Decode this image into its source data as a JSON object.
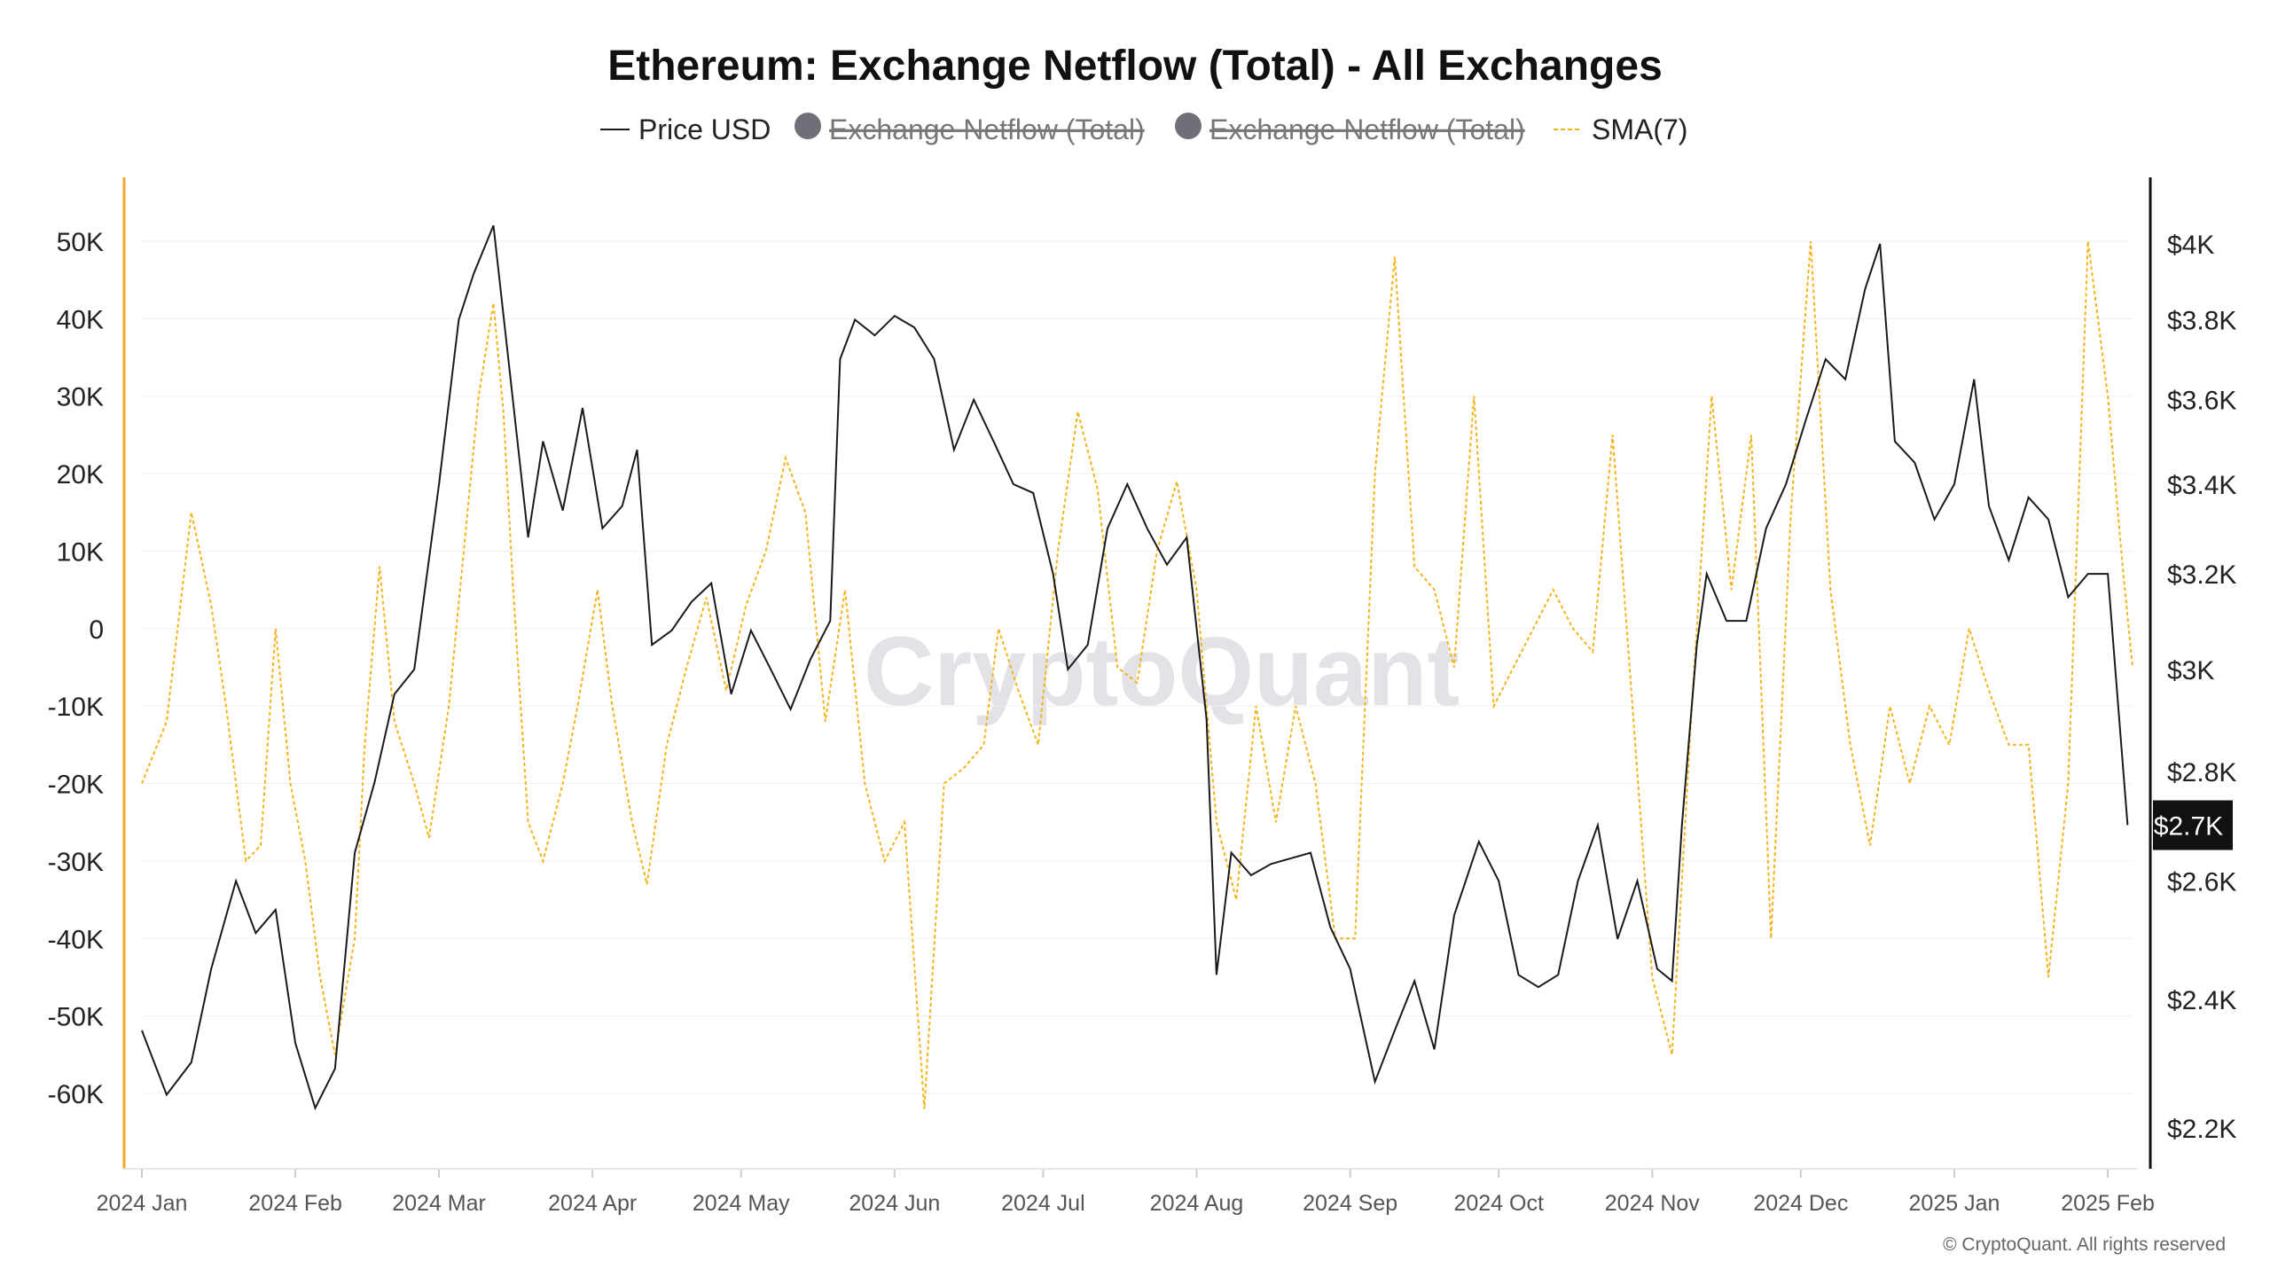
{
  "chart_data": {
    "type": "line",
    "title": "Ethereum: Exchange Netflow (Total) - All Exchanges",
    "legend": {
      "placement": "top-center",
      "items": [
        {
          "label": "Price USD",
          "marker": "line",
          "active": true
        },
        {
          "label": "Exchange Netflow (Total)",
          "marker": "dot",
          "active": false
        },
        {
          "label": "Exchange Netflow (Total)",
          "marker": "dot",
          "active": false
        },
        {
          "label": "SMA(7)",
          "marker": "dashed-line",
          "active": true
        }
      ]
    },
    "x_axis": {
      "ticks": [
        "2024 Jan",
        "2024 Feb",
        "2024 Mar",
        "2024 Apr",
        "2024 May",
        "2024 Jun",
        "2024 Jul",
        "2024 Aug",
        "2024 Sep",
        "2024 Oct",
        "2024 Nov",
        "2024 Dec",
        "2025 Jan",
        "2025 Feb"
      ],
      "range": [
        "2024-01-01",
        "2025-02-06"
      ]
    },
    "y_left": {
      "ticks": [
        50000,
        40000,
        30000,
        20000,
        10000,
        0,
        -10000,
        -20000,
        -30000,
        -40000,
        -50000,
        -60000
      ],
      "tick_labels": [
        "50K",
        "40K",
        "30K",
        "20K",
        "10K",
        "0",
        "-10K",
        "-20K",
        "-30K",
        "-40K",
        "-50K",
        "-60K"
      ],
      "range": [
        -69000,
        59000
      ]
    },
    "y_right": {
      "ticks": [
        4000,
        3800,
        3600,
        3400,
        3200,
        3000,
        2800,
        2600,
        2400,
        2200
      ],
      "tick_labels": [
        "$4K",
        "$3.8K",
        "$3.6K",
        "$3.4K",
        "$3.2K",
        "$3K",
        "$2.8K",
        "$2.6K",
        "$2.4K",
        "$2.2K"
      ],
      "scale": "log",
      "range": [
        2150,
        4200
      ]
    },
    "grid": {
      "horizontal": true,
      "vertical": false
    },
    "current_price_label": "$2.7K",
    "series": [
      {
        "name": "Price USD",
        "axis": "right",
        "color": "#1a1a1a",
        "x": [
          "2024-01-01",
          "2024-01-06",
          "2024-01-11",
          "2024-01-15",
          "2024-01-20",
          "2024-01-24",
          "2024-01-28",
          "2024-02-01",
          "2024-02-05",
          "2024-02-09",
          "2024-02-13",
          "2024-02-17",
          "2024-02-21",
          "2024-02-25",
          "2024-03-01",
          "2024-03-05",
          "2024-03-08",
          "2024-03-12",
          "2024-03-15",
          "2024-03-19",
          "2024-03-22",
          "2024-03-26",
          "2024-03-30",
          "2024-04-03",
          "2024-04-07",
          "2024-04-10",
          "2024-04-13",
          "2024-04-17",
          "2024-04-21",
          "2024-04-25",
          "2024-04-29",
          "2024-05-03",
          "2024-05-07",
          "2024-05-11",
          "2024-05-15",
          "2024-05-19",
          "2024-05-21",
          "2024-05-24",
          "2024-05-28",
          "2024-06-01",
          "2024-06-05",
          "2024-06-09",
          "2024-06-13",
          "2024-06-17",
          "2024-06-21",
          "2024-06-25",
          "2024-06-29",
          "2024-07-03",
          "2024-07-06",
          "2024-07-10",
          "2024-07-14",
          "2024-07-18",
          "2024-07-22",
          "2024-07-26",
          "2024-07-30",
          "2024-08-03",
          "2024-08-05",
          "2024-08-08",
          "2024-08-12",
          "2024-08-16",
          "2024-08-20",
          "2024-08-24",
          "2024-08-28",
          "2024-09-01",
          "2024-09-06",
          "2024-09-10",
          "2024-09-14",
          "2024-09-18",
          "2024-09-22",
          "2024-09-27",
          "2024-10-01",
          "2024-10-05",
          "2024-10-09",
          "2024-10-13",
          "2024-10-17",
          "2024-10-21",
          "2024-10-25",
          "2024-10-29",
          "2024-11-02",
          "2024-11-05",
          "2024-11-07",
          "2024-11-10",
          "2024-11-12",
          "2024-11-16",
          "2024-11-20",
          "2024-11-24",
          "2024-11-28",
          "2024-12-02",
          "2024-12-06",
          "2024-12-10",
          "2024-12-14",
          "2024-12-17",
          "2024-12-20",
          "2024-12-24",
          "2024-12-28",
          "2025-01-01",
          "2025-01-05",
          "2025-01-08",
          "2025-01-12",
          "2025-01-16",
          "2025-01-20",
          "2025-01-24",
          "2025-01-28",
          "2025-02-01",
          "2025-02-03",
          "2025-02-05"
        ],
        "values": [
          2350,
          2250,
          2300,
          2450,
          2600,
          2510,
          2550,
          2330,
          2230,
          2290,
          2650,
          2780,
          2950,
          3000,
          3400,
          3800,
          3920,
          4050,
          3700,
          3280,
          3500,
          3340,
          3580,
          3300,
          3350,
          3480,
          3050,
          3080,
          3140,
          3180,
          2950,
          3080,
          3000,
          2920,
          3020,
          3100,
          3700,
          3800,
          3760,
          3810,
          3780,
          3700,
          3480,
          3600,
          3500,
          3400,
          3380,
          3200,
          3000,
          3050,
          3300,
          3400,
          3300,
          3220,
          3280,
          2900,
          2440,
          2650,
          2610,
          2630,
          2640,
          2650,
          2520,
          2450,
          2270,
          2350,
          2430,
          2320,
          2540,
          2670,
          2600,
          2440,
          2420,
          2440,
          2600,
          2700,
          2500,
          2600,
          2450,
          2430,
          2700,
          3050,
          3200,
          3100,
          3100,
          3300,
          3400,
          3550,
          3700,
          3650,
          3880,
          4000,
          3500,
          3450,
          3320,
          3400,
          3650,
          3350,
          3230,
          3370,
          3320,
          3150,
          3200,
          3200,
          2940,
          2700
        ]
      },
      {
        "name": "SMA(7)",
        "axis": "left",
        "color": "#f5b419",
        "x": [
          "2024-01-01",
          "2024-01-06",
          "2024-01-11",
          "2024-01-15",
          "2024-01-18",
          "2024-01-22",
          "2024-01-25",
          "2024-01-28",
          "2024-01-31",
          "2024-02-03",
          "2024-02-06",
          "2024-02-09",
          "2024-02-13",
          "2024-02-15",
          "2024-02-18",
          "2024-02-21",
          "2024-02-25",
          "2024-02-28",
          "2024-03-03",
          "2024-03-06",
          "2024-03-09",
          "2024-03-12",
          "2024-03-14",
          "2024-03-16",
          "2024-03-19",
          "2024-03-22",
          "2024-03-26",
          "2024-03-29",
          "2024-04-02",
          "2024-04-05",
          "2024-04-09",
          "2024-04-12",
          "2024-04-16",
          "2024-04-20",
          "2024-04-24",
          "2024-04-28",
          "2024-05-02",
          "2024-05-06",
          "2024-05-10",
          "2024-05-14",
          "2024-05-18",
          "2024-05-22",
          "2024-05-26",
          "2024-05-30",
          "2024-06-03",
          "2024-06-07",
          "2024-06-11",
          "2024-06-15",
          "2024-06-19",
          "2024-06-22",
          "2024-06-26",
          "2024-06-30",
          "2024-07-04",
          "2024-07-08",
          "2024-07-12",
          "2024-07-16",
          "2024-07-20",
          "2024-07-24",
          "2024-07-28",
          "2024-08-01",
          "2024-08-05",
          "2024-08-09",
          "2024-08-13",
          "2024-08-17",
          "2024-08-21",
          "2024-08-25",
          "2024-08-29",
          "2024-09-02",
          "2024-09-06",
          "2024-09-10",
          "2024-09-14",
          "2024-09-18",
          "2024-09-22",
          "2024-09-26",
          "2024-09-30",
          "2024-10-04",
          "2024-10-08",
          "2024-10-12",
          "2024-10-16",
          "2024-10-20",
          "2024-10-24",
          "2024-10-28",
          "2024-11-01",
          "2024-11-05",
          "2024-11-09",
          "2024-11-13",
          "2024-11-17",
          "2024-11-21",
          "2024-11-25",
          "2024-11-29",
          "2024-12-03",
          "2024-12-07",
          "2024-12-11",
          "2024-12-15",
          "2024-12-19",
          "2024-12-23",
          "2024-12-27",
          "2024-12-31",
          "2025-01-04",
          "2025-01-08",
          "2025-01-12",
          "2025-01-16",
          "2025-01-20",
          "2025-01-24",
          "2025-01-28",
          "2025-02-01",
          "2025-02-04",
          "2025-02-06"
        ],
        "values": [
          -20000,
          -12000,
          15000,
          3000,
          -10000,
          -30000,
          -28000,
          0,
          -20000,
          -30000,
          -45000,
          -55000,
          -40000,
          -15000,
          8000,
          -12000,
          -20000,
          -27000,
          -10000,
          10000,
          30000,
          42000,
          28000,
          5000,
          -25000,
          -30000,
          -20000,
          -10000,
          5000,
          -10000,
          -25000,
          -33000,
          -15000,
          -5000,
          4000,
          -8000,
          3000,
          10000,
          22000,
          15000,
          -12000,
          5000,
          -20000,
          -30000,
          -25000,
          -62000,
          -20000,
          -18000,
          -15000,
          0,
          -8000,
          -15000,
          10000,
          28000,
          18000,
          -5000,
          -7000,
          10000,
          19000,
          5000,
          -25000,
          -35000,
          -10000,
          -25000,
          -10000,
          -20000,
          -40000,
          -40000,
          20000,
          48000,
          8000,
          5000,
          -5000,
          30000,
          -10000,
          -5000,
          0,
          5000,
          0,
          -3000,
          25000,
          -10000,
          -45000,
          -55000,
          -10000,
          30000,
          5000,
          25000,
          -40000,
          15000,
          50000,
          5000,
          -15000,
          -28000,
          -10000,
          -20000,
          -10000,
          -15000,
          0,
          -8000,
          -15000,
          -15000,
          -45000,
          -20000,
          50000,
          30000,
          8000,
          -5000
        ]
      }
    ]
  },
  "watermark": "CryptoQuant",
  "copyright": "© CryptoQuant. All rights reserved"
}
